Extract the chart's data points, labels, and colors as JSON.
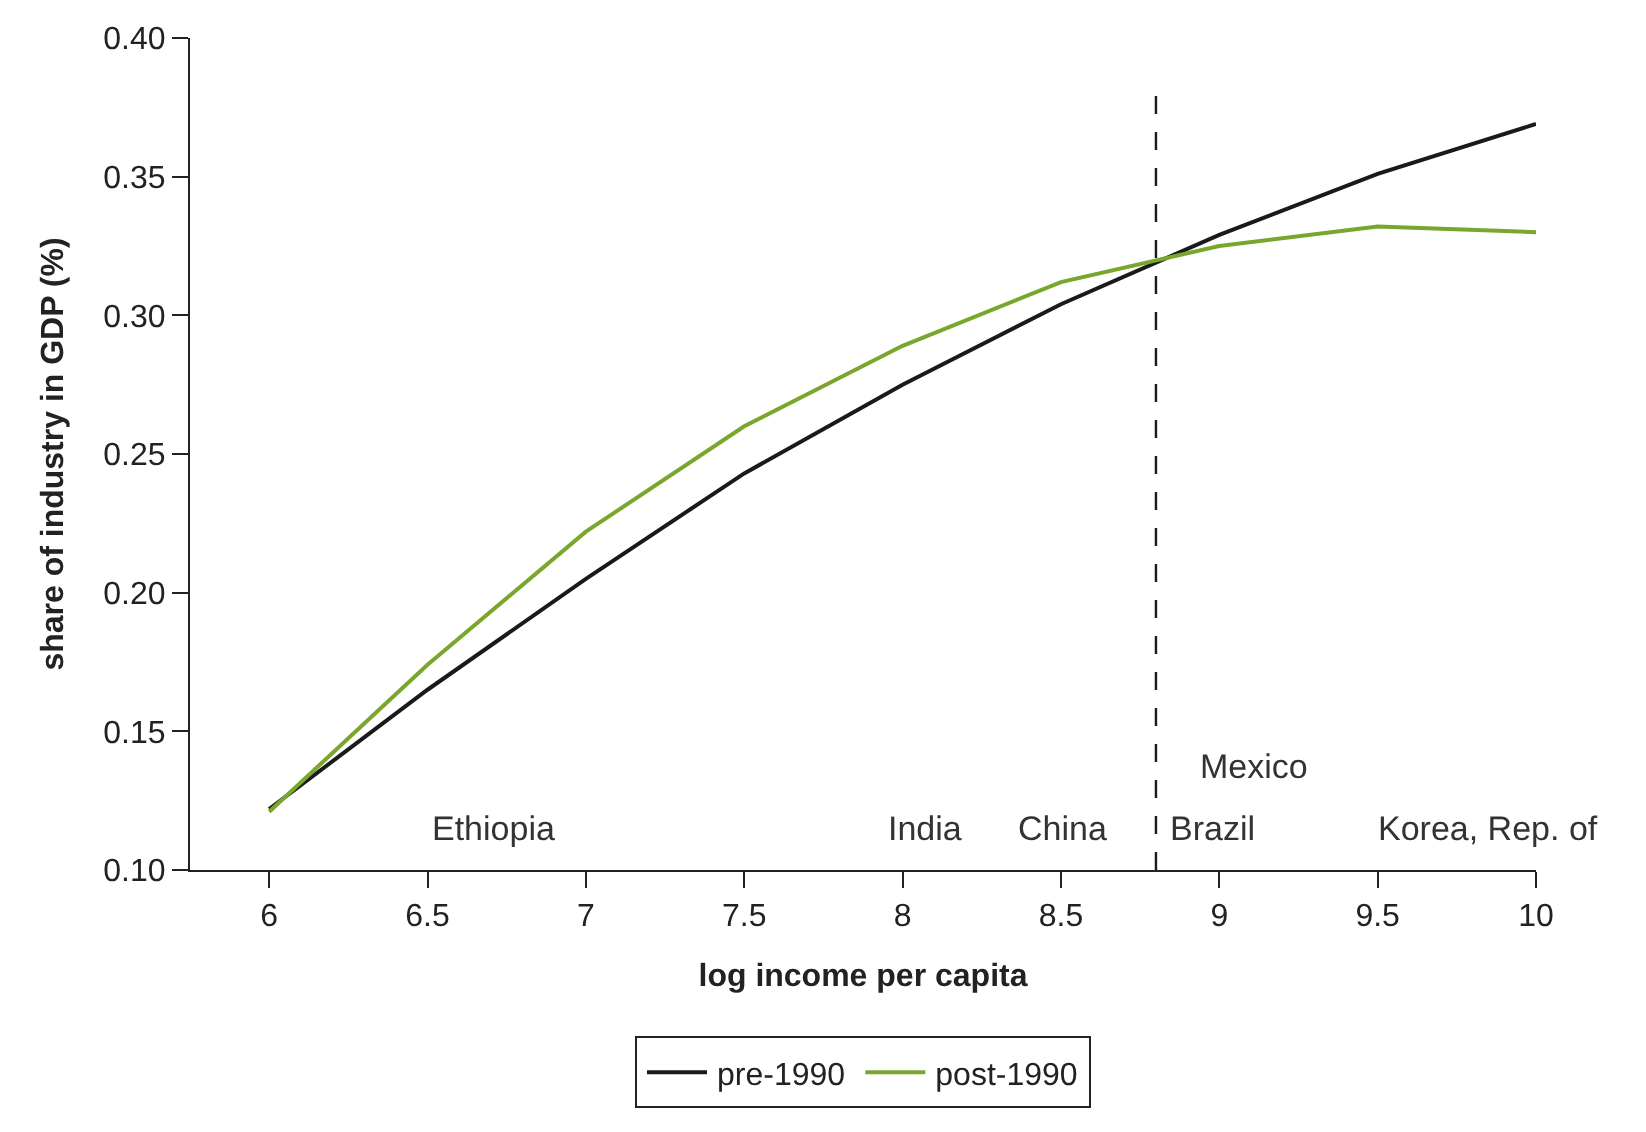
{
  "chart_data": {
    "type": "line",
    "xlabel": "log income per capita",
    "ylabel": "share of industry in GDP (%)",
    "x": [
      6,
      6.5,
      7,
      7.5,
      8,
      8.5,
      9,
      9.5,
      10
    ],
    "series": [
      {
        "name": "pre-1990",
        "color": "#1a1a1a",
        "values": [
          0.122,
          0.165,
          0.205,
          0.243,
          0.275,
          0.304,
          0.329,
          0.351,
          0.369
        ]
      },
      {
        "name": "post-1990",
        "color": "#7aa62d",
        "values": [
          0.121,
          0.174,
          0.222,
          0.26,
          0.289,
          0.312,
          0.325,
          0.332,
          0.33
        ]
      }
    ],
    "xlim": [
      5.75,
      10
    ],
    "xticks": [
      6,
      6.5,
      7,
      7.5,
      8,
      8.5,
      9,
      9.5,
      10
    ],
    "ylim": [
      0.1,
      0.4
    ],
    "yticks": [
      {
        "value": 0.1,
        "label": "0.10"
      },
      0.15,
      {
        "value": 0.2,
        "label": "0.20"
      },
      0.25,
      {
        "value": 0.3,
        "label": "0.30"
      },
      0.35,
      {
        "value": 0.4,
        "label": "0.40"
      }
    ],
    "ref_lines": [
      {
        "axis": "x",
        "value": 8.8,
        "color": "#1a1a1a",
        "line_style": "dashed"
      }
    ],
    "annotations": [
      "Ethiopia",
      "India",
      "China",
      "Brazil",
      "Mexico",
      "Korea, Rep. of"
    ],
    "legend": "bottom",
    "marker": "none",
    "line_style": "solid"
  }
}
